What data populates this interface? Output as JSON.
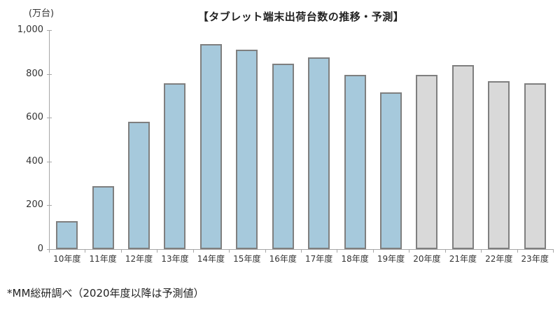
{
  "page": {
    "footnote": "*MM総研調べ（2020年度以降は予測値）"
  },
  "chart_data": {
    "type": "bar",
    "title": "【タブレット端末出荷台数の推移・予測】",
    "ylabel": "(万台)",
    "xlabel": "",
    "categories": [
      "10年度",
      "11年度",
      "12年度",
      "13年度",
      "14年度",
      "15年度",
      "16年度",
      "17年度",
      "18年度",
      "19年度",
      "20年度",
      "21年度",
      "22年度",
      "23年度"
    ],
    "values": [
      120,
      280,
      575,
      750,
      930,
      905,
      840,
      870,
      790,
      710,
      790,
      835,
      760,
      750
    ],
    "forecast_start_index": 10,
    "forecast_note": "2020年度以降は予測値",
    "ylim": [
      0,
      1000
    ],
    "yticks": [
      0,
      200,
      400,
      600,
      800,
      1000
    ],
    "ytick_labels": [
      "0",
      "200",
      "400",
      "600",
      "800",
      "1,000"
    ],
    "grid": false,
    "legend": false,
    "colors": {
      "actual_fill": "#a6c9dc",
      "forecast_fill": "#d9d9d9",
      "bar_border": "#7f7f7f",
      "axis": "#a6a6a6",
      "text": "#333333"
    }
  }
}
